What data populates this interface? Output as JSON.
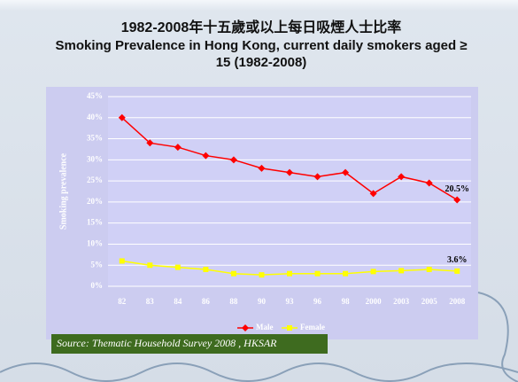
{
  "chart_data": {
    "type": "line",
    "title": "1982-2008年十五歲或以上每日吸煙人士比率",
    "subtitle": "Smoking Prevalence in Hong Kong, current daily smokers aged ≥ 15 (1982-2008)",
    "y_label": "Smoking prevalence",
    "source": "Source: Thematic Household Survey 2008 , HKSAR",
    "categories": [
      "82",
      "83",
      "84",
      "86",
      "88",
      "90",
      "93",
      "96",
      "98",
      "2000",
      "2003",
      "2005",
      "2008"
    ],
    "series": [
      {
        "name": "Male",
        "color": "#ff0000",
        "marker": "diamond",
        "values": [
          40,
          34,
          33,
          31,
          30,
          28,
          27,
          26,
          27,
          22,
          26,
          24.5,
          20.5
        ],
        "value_labels": [
          null,
          null,
          null,
          null,
          null,
          null,
          null,
          null,
          null,
          null,
          null,
          null,
          "20.5%"
        ]
      },
      {
        "name": "Female",
        "color": "#ffff00",
        "marker": "square",
        "values": [
          6,
          5,
          4.5,
          4,
          3,
          2.7,
          3,
          3,
          3,
          3.5,
          3.7,
          4,
          3.6
        ],
        "value_labels": [
          null,
          null,
          null,
          null,
          null,
          null,
          null,
          null,
          null,
          null,
          null,
          null,
          "3.6%"
        ]
      }
    ],
    "ylim": [
      0,
      45
    ],
    "yticks": [
      {
        "value": 0,
        "label": "0%"
      },
      {
        "value": 5,
        "label": "5%"
      },
      {
        "value": 10,
        "label": "10%"
      },
      {
        "value": 15,
        "label": "15%"
      },
      {
        "value": 20,
        "label": "20%"
      },
      {
        "value": 25,
        "label": "25%"
      },
      {
        "value": 30,
        "label": "30%"
      },
      {
        "value": 35,
        "label": "35%"
      },
      {
        "value": 40,
        "label": "40%"
      },
      {
        "value": 45,
        "label": "45%"
      }
    ],
    "grid": true,
    "legend": "bottom"
  }
}
